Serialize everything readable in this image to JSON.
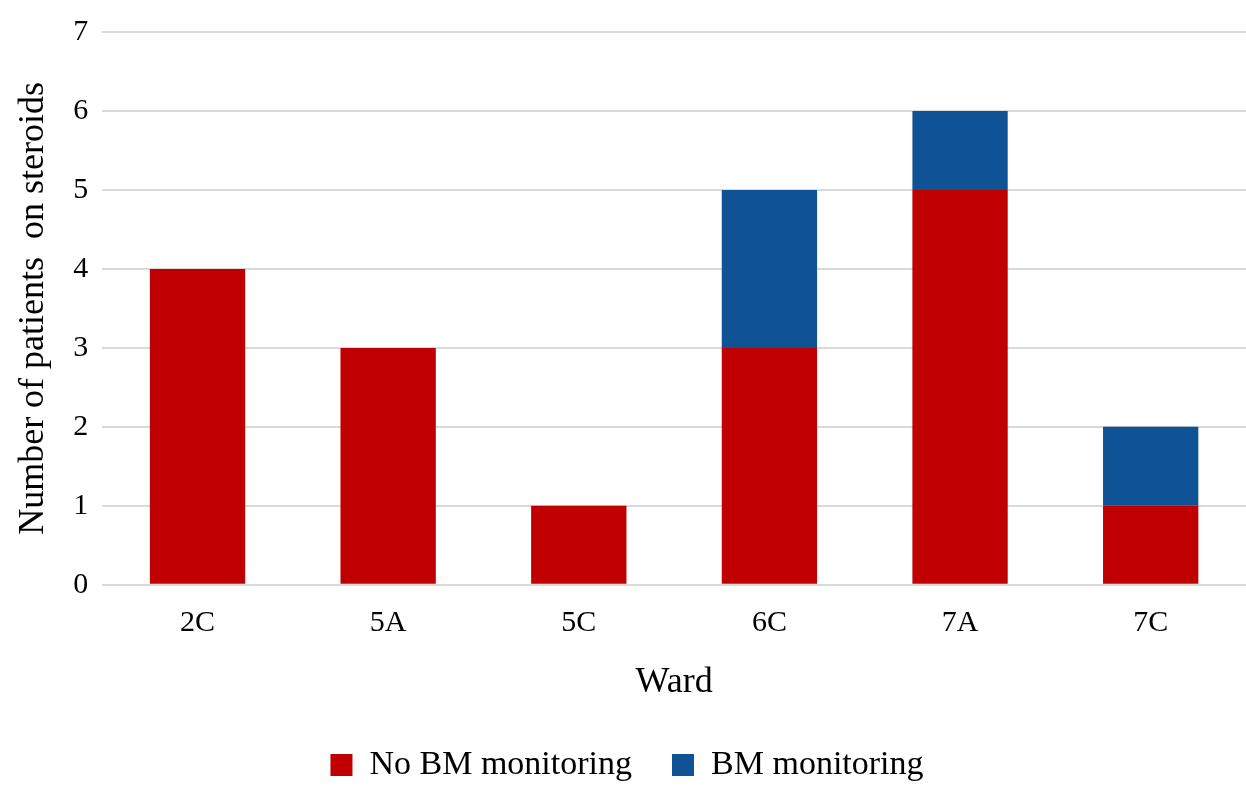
{
  "chart_data": {
    "type": "bar",
    "stacked": true,
    "xlabel": "Ward",
    "ylabel": "Number of patients  on steroids",
    "categories": [
      "2C",
      "5A",
      "5C",
      "6C",
      "7A",
      "7C"
    ],
    "series": [
      {
        "name": "No BM monitoring",
        "color": "#c00000",
        "values": [
          4,
          3,
          1,
          3,
          5,
          1
        ]
      },
      {
        "name": "BM monitoring",
        "color": "#0f5296",
        "values": [
          0,
          0,
          0,
          2,
          1,
          1
        ]
      }
    ],
    "ylim": [
      0,
      7
    ],
    "yticks": [
      0,
      1,
      2,
      3,
      4,
      5,
      6,
      7
    ],
    "grid": "y",
    "legend": "bottom"
  }
}
